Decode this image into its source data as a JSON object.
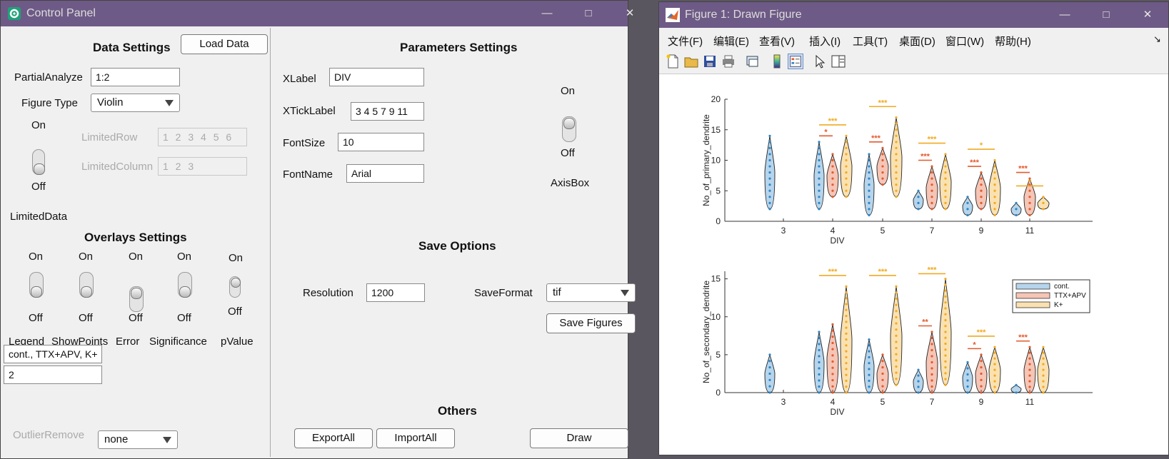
{
  "control_panel": {
    "title": "Control Panel",
    "data_settings": {
      "header": "Data Settings",
      "load_button": "Load Data",
      "partial_analyze_label": "PartialAnalyze",
      "partial_analyze_value": "1:2",
      "figure_type_label": "Figure Type",
      "figure_type_value": "Violin",
      "toggle_on": "On",
      "toggle_off": "Off",
      "limited_row_label": "LimitedRow",
      "limited_row_value": "1 2 3 4 5 6",
      "limited_column_label": "LimitedColumn",
      "limited_column_value": "1 2 3",
      "limited_data_label": "LimitedData"
    },
    "overlays_settings": {
      "header": "Overlays Settings",
      "on": "On",
      "off": "Off",
      "legend_label": "Legend",
      "showpoints_label": "ShowPoints",
      "error_label": "Error",
      "significance_label": "Significance",
      "pvalue_label": "pValue",
      "legend_value": "cont., TTX+APV, K+",
      "pvalue_value": "2"
    },
    "outlier": {
      "label": "OutlierRemove",
      "value": "none"
    },
    "parameters_settings": {
      "header": "Parameters Settings",
      "xlabel_label": "XLabel",
      "xlabel_value": "DIV",
      "xticklabel_label": "XTickLabel",
      "xticklabel_value": "3 4 5 7 9 11",
      "fontsize_label": "FontSize",
      "fontsize_value": "10",
      "fontname_label": "FontName",
      "fontname_value": "Arial",
      "axisbox_on": "On",
      "axisbox_off": "Off",
      "axisbox_label": "AxisBox"
    },
    "save_options": {
      "header": "Save Options",
      "resolution_label": "Resolution",
      "resolution_value": "1200",
      "saveformat_label": "SaveFormat",
      "saveformat_value": "tif",
      "save_button": "Save Figures"
    },
    "others": {
      "header": "Others",
      "export_button": "ExportAll",
      "import_button": "ImportAll",
      "draw_button": "Draw"
    }
  },
  "figure_window": {
    "title": "Figure 1: Drawn Figure",
    "menu": [
      "文件(F)",
      "编辑(E)",
      "查看(V)",
      "插入(I)",
      "工具(T)",
      "桌面(D)",
      "窗口(W)",
      "帮助(H)"
    ],
    "toolbar_icons": [
      "new-file-icon",
      "open-folder-icon",
      "save-icon",
      "print-icon",
      "link-plot-icon",
      "colorbar-icon",
      "legend-icon",
      "pointer-icon",
      "property-inspector-icon"
    ]
  },
  "chart_data": [
    {
      "type": "violin",
      "xlabel": "DIV",
      "ylabel": "No_of_primary_dendrite",
      "categories": [
        "3",
        "4",
        "5",
        "7",
        "9",
        "11"
      ],
      "ylim": [
        0,
        20
      ],
      "yticks": [
        0,
        5,
        10,
        15,
        20
      ],
      "series": [
        {
          "name": "cont.",
          "color": "#2e86c8",
          "ranges": [
            [
              2,
              14
            ],
            [
              2,
              13
            ],
            [
              1,
              11
            ],
            [
              2,
              5
            ],
            [
              1,
              4
            ],
            [
              1,
              3
            ]
          ]
        },
        {
          "name": "TTX+APV",
          "color": "#e35a2d",
          "ranges": [
            null,
            [
              4,
              11
            ],
            [
              6,
              12
            ],
            [
              2,
              9
            ],
            [
              2,
              8
            ],
            [
              1,
              7
            ]
          ]
        },
        {
          "name": "K+",
          "color": "#f1aa20",
          "ranges": [
            null,
            [
              4,
              14
            ],
            [
              4,
              17
            ],
            [
              2,
              11
            ],
            [
              1,
              10
            ],
            [
              2,
              4
            ]
          ]
        }
      ],
      "significance": [
        {
          "pair": "cont.-TTX+APV",
          "category": "4",
          "label": "*"
        },
        {
          "pair": "cont.-K+",
          "category": "4",
          "label": "***"
        },
        {
          "pair": "cont.-TTX+APV",
          "category": "5",
          "label": "***"
        },
        {
          "pair": "cont.-K+",
          "category": "5",
          "label": "***"
        },
        {
          "pair": "cont.-TTX+APV",
          "category": "7",
          "label": "***"
        },
        {
          "pair": "cont.-K+",
          "category": "7",
          "label": "***"
        },
        {
          "pair": "cont.-TTX+APV",
          "category": "9",
          "label": "***"
        },
        {
          "pair": "cont.-K+",
          "category": "9",
          "label": "*"
        },
        {
          "pair": "cont.-TTX+APV",
          "category": "11",
          "label": "***"
        },
        {
          "pair": "cont.-K+",
          "category": "11",
          "label": "*"
        }
      ]
    },
    {
      "type": "violin",
      "xlabel": "DIV",
      "ylabel": "No_of_secondary_dendrite",
      "categories": [
        "3",
        "4",
        "5",
        "7",
        "9",
        "11"
      ],
      "ylim": [
        0,
        16
      ],
      "yticks": [
        0,
        5,
        10,
        15
      ],
      "legend": {
        "entries": [
          "cont.",
          "TTX+APV",
          "K+"
        ],
        "placement": "top-right"
      },
      "series": [
        {
          "name": "cont.",
          "color": "#2e86c8",
          "ranges": [
            [
              0,
              5
            ],
            [
              0,
              8
            ],
            [
              0,
              7
            ],
            [
              0,
              3
            ],
            [
              0,
              4
            ],
            [
              0,
              1
            ]
          ]
        },
        {
          "name": "TTX+APV",
          "color": "#e35a2d",
          "ranges": [
            null,
            [
              0,
              9
            ],
            [
              0,
              5
            ],
            [
              0,
              8
            ],
            [
              0,
              5
            ],
            [
              0,
              6
            ]
          ]
        },
        {
          "name": "K+",
          "color": "#f1aa20",
          "ranges": [
            null,
            [
              0,
              14
            ],
            [
              1,
              14
            ],
            [
              1,
              15
            ],
            [
              0,
              6
            ],
            [
              0,
              6
            ]
          ]
        }
      ],
      "significance": [
        {
          "pair": "cont.-K+",
          "category": "4",
          "label": "***"
        },
        {
          "pair": "cont.-K+",
          "category": "5",
          "label": "***"
        },
        {
          "pair": "cont.-TTX+APV",
          "category": "7",
          "label": "**"
        },
        {
          "pair": "cont.-K+",
          "category": "7",
          "label": "***"
        },
        {
          "pair": "cont.-TTX+APV",
          "category": "9",
          "label": "*"
        },
        {
          "pair": "cont.-K+",
          "category": "9",
          "label": "***"
        },
        {
          "pair": "cont.-TTX+APV",
          "category": "11",
          "label": "***"
        }
      ]
    }
  ]
}
